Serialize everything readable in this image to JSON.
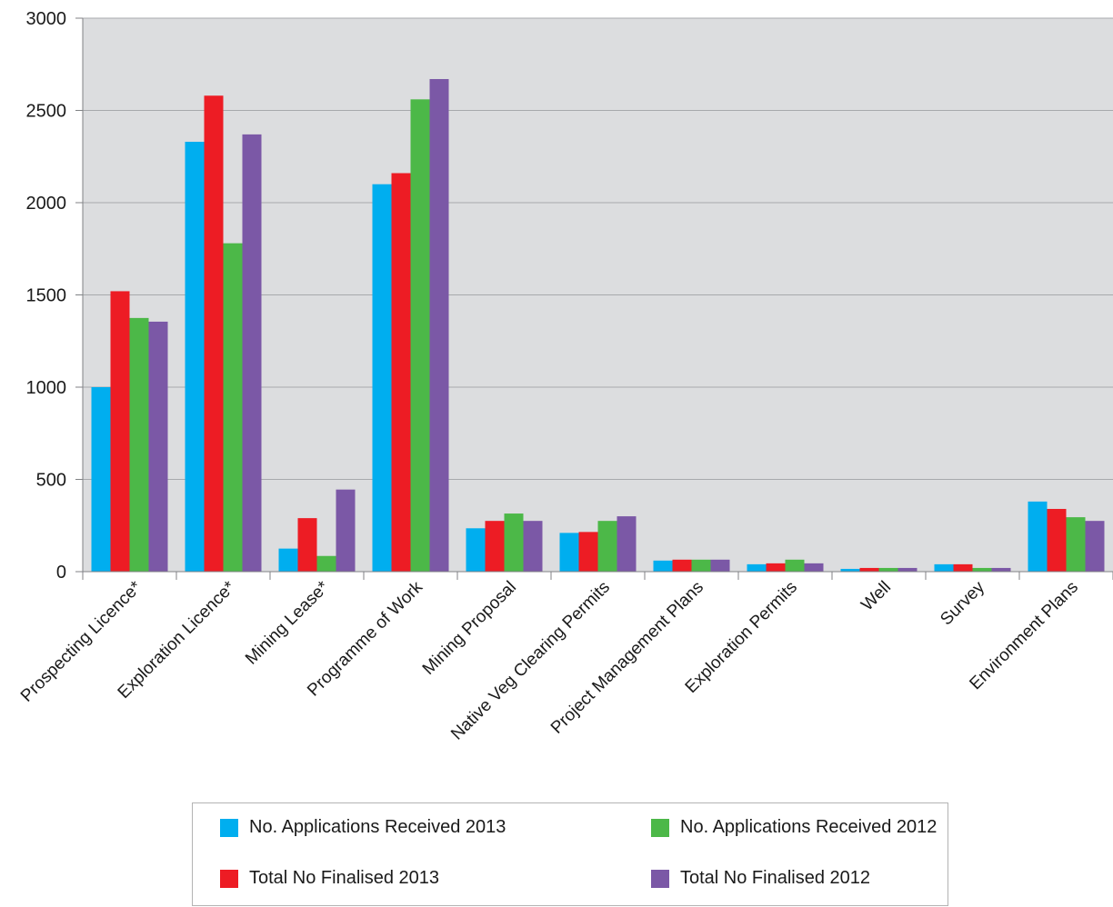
{
  "chart_data": {
    "type": "bar",
    "title": "",
    "xlabel": "",
    "ylabel": "",
    "ylim": [
      0,
      3000
    ],
    "yticks": [
      0,
      500,
      1000,
      1500,
      2000,
      2500,
      3000
    ],
    "grid": true,
    "legend_position": "bottom",
    "categories": [
      "Prospecting Licence*",
      "Exploration Licence*",
      "Mining Lease*",
      "Programme of Work",
      "Mining Proposal",
      "Native Veg Clearing Permits",
      "Project Management Plans",
      "Exploration Permits",
      "Well",
      "Survey",
      "Environment Plans"
    ],
    "series": [
      {
        "name": "No. Applications Received 2013",
        "color": "#00aeef",
        "values": [
          1000,
          2330,
          125,
          2100,
          235,
          210,
          60,
          40,
          15,
          40,
          380
        ]
      },
      {
        "name": "Total No Finalised 2013",
        "color": "#ed1c24",
        "values": [
          1520,
          2580,
          290,
          2160,
          275,
          215,
          65,
          45,
          20,
          40,
          340
        ]
      },
      {
        "name": "No. Applications Received 2012",
        "color": "#4cb848",
        "values": [
          1375,
          1780,
          85,
          2560,
          315,
          275,
          65,
          65,
          20,
          20,
          295
        ]
      },
      {
        "name": "Total No Finalised 2012",
        "color": "#7b58a6",
        "values": [
          1355,
          2370,
          445,
          2670,
          275,
          300,
          65,
          45,
          20,
          20,
          275
        ]
      }
    ]
  },
  "colors": {
    "plot_background": "#dcdddf",
    "gridline": "#a7a9ac",
    "axis": "#808285"
  }
}
